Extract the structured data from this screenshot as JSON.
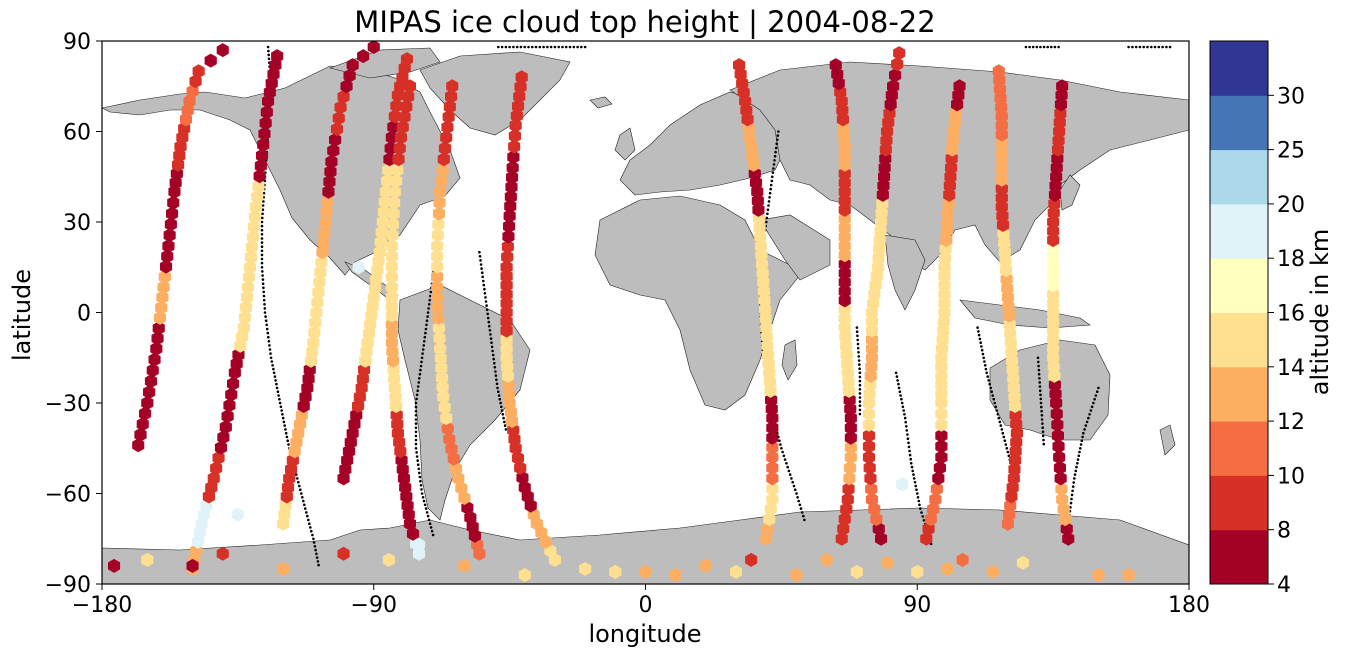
{
  "chart_data": {
    "type": "scatter",
    "title": "MIPAS ice cloud top height | 2004-08-22",
    "xlabel": "longitude",
    "ylabel": "latitude",
    "xlim": [
      -180,
      180
    ],
    "ylim": [
      -90,
      90
    ],
    "x_ticks": [
      -180,
      -90,
      0,
      90,
      180
    ],
    "y_ticks": [
      90,
      60,
      30,
      0,
      -30,
      -60,
      -90
    ],
    "x_tick_labels": [
      "−180",
      "−90",
      "0",
      "90",
      "180"
    ],
    "y_tick_labels": [
      "90",
      "60",
      "30",
      "0",
      "−30",
      "−60",
      "−90"
    ],
    "grid": false,
    "basemap": "world coastlines, land shaded grey",
    "colorbar": {
      "label": "altitude in km",
      "boundaries": [
        4,
        8,
        10,
        12,
        14,
        16,
        18,
        20,
        25,
        30
      ],
      "tick_labels": [
        "4",
        "8",
        "10",
        "12",
        "14",
        "16",
        "18",
        "20",
        "25",
        "30"
      ],
      "colors": [
        "#a50026",
        "#d73027",
        "#f46d43",
        "#fdae61",
        "#fee090",
        "#ffffbf",
        "#e0f3f8",
        "#abd9e9",
        "#4575b4",
        "#313695"
      ]
    },
    "clear_sky_marker": "black dots",
    "orbits": [
      {
        "points": [
          [
            -168,
            -44,
            6
          ],
          [
            -165,
            -30,
            6
          ],
          [
            -162,
            -12,
            7
          ],
          [
            -160,
            5,
            12
          ],
          [
            -158,
            22,
            7
          ],
          [
            -156,
            40,
            6
          ],
          [
            -154,
            55,
            9
          ],
          [
            -151,
            70,
            11
          ],
          [
            -148,
            80,
            9
          ],
          [
            -140,
            87,
            6
          ]
        ]
      },
      {
        "points": [
          [
            -150,
            -85,
            13
          ],
          [
            -147,
            -70,
            19
          ],
          [
            -143,
            -55,
            9
          ],
          [
            -139,
            -38,
            6
          ],
          [
            -136,
            -20,
            6
          ],
          [
            -133,
            -5,
            15
          ],
          [
            -131,
            15,
            15
          ],
          [
            -129,
            35,
            14
          ],
          [
            -127,
            52,
            7
          ],
          [
            -125,
            70,
            6
          ],
          [
            -122,
            85,
            7
          ]
        ]
      },
      {
        "points": [
          [
            -120,
            -70,
            15
          ],
          [
            -118,
            -55,
            9
          ],
          [
            -115,
            -40,
            13
          ],
          [
            -112,
            -25,
            7
          ],
          [
            -110,
            -10,
            15
          ],
          [
            -108,
            10,
            15
          ],
          [
            -106,
            30,
            13
          ],
          [
            -104,
            50,
            7
          ],
          [
            -101,
            68,
            8
          ],
          [
            -97,
            82,
            6
          ],
          [
            -90,
            88,
            7
          ]
        ]
      },
      {
        "points": [
          [
            -100,
            -55,
            6
          ],
          [
            -97,
            -40,
            7
          ],
          [
            -94,
            -25,
            9
          ],
          [
            -92,
            -10,
            15
          ],
          [
            -90,
            5,
            15
          ],
          [
            -88,
            20,
            15
          ],
          [
            -86,
            40,
            14
          ],
          [
            -84,
            58,
            7
          ],
          [
            -82,
            72,
            8
          ],
          [
            -79,
            84,
            9
          ]
        ]
      },
      {
        "points": [
          [
            -75,
            -80,
            19
          ],
          [
            -78,
            -70,
            6
          ],
          [
            -80,
            -55,
            6
          ],
          [
            -82,
            -40,
            8
          ],
          [
            -83,
            -25,
            14
          ],
          [
            -84,
            -10,
            13
          ],
          [
            -84,
            5,
            15
          ],
          [
            -84,
            22,
            14
          ],
          [
            -83,
            40,
            15
          ],
          [
            -81,
            58,
            8
          ],
          [
            -78,
            75,
            8
          ]
        ]
      },
      {
        "points": [
          [
            -55,
            -80,
            11
          ],
          [
            -58,
            -68,
            7
          ],
          [
            -62,
            -55,
            13
          ],
          [
            -65,
            -42,
            10
          ],
          [
            -67,
            -28,
            15
          ],
          [
            -68,
            -12,
            14
          ],
          [
            -69,
            5,
            13
          ],
          [
            -69,
            22,
            15
          ],
          [
            -68,
            40,
            13
          ],
          [
            -66,
            58,
            8
          ],
          [
            -64,
            75,
            9
          ]
        ]
      },
      {
        "points": [
          [
            -30,
            -82,
            15
          ],
          [
            -36,
            -70,
            13
          ],
          [
            -40,
            -58,
            7
          ],
          [
            -43,
            -45,
            9
          ],
          [
            -45,
            -30,
            13
          ],
          [
            -46,
            -15,
            15
          ],
          [
            -46,
            0,
            9
          ],
          [
            -46,
            15,
            8
          ],
          [
            -45,
            32,
            7
          ],
          [
            -44,
            48,
            6
          ],
          [
            -43,
            62,
            9
          ],
          [
            -41,
            78,
            8
          ]
        ]
      },
      {
        "points": [
          [
            40,
            -75,
            13
          ],
          [
            42,
            -62,
            15
          ],
          [
            42,
            -48,
            11
          ],
          [
            42,
            -35,
            7
          ],
          [
            41,
            -20,
            15
          ],
          [
            40,
            -5,
            15
          ],
          [
            39,
            10,
            14
          ],
          [
            38,
            25,
            15
          ],
          [
            37,
            40,
            7
          ],
          [
            35,
            55,
            13
          ],
          [
            33,
            70,
            9
          ],
          [
            31,
            82,
            8
          ]
        ]
      },
      {
        "points": [
          [
            65,
            -75,
            8
          ],
          [
            67,
            -62,
            9
          ],
          [
            68,
            -48,
            13
          ],
          [
            68,
            -35,
            7
          ],
          [
            67,
            -20,
            15
          ],
          [
            66,
            -5,
            15
          ],
          [
            66,
            10,
            7
          ],
          [
            66,
            25,
            13
          ],
          [
            66,
            40,
            8
          ],
          [
            66,
            55,
            12
          ],
          [
            65,
            70,
            9
          ],
          [
            63,
            82,
            6
          ]
        ]
      },
      {
        "points": [
          [
            78,
            -75,
            6
          ],
          [
            75,
            -62,
            10
          ],
          [
            74,
            -48,
            8
          ],
          [
            74,
            -30,
            15
          ],
          [
            75,
            -15,
            13
          ],
          [
            75,
            0,
            15
          ],
          [
            77,
            15,
            14
          ],
          [
            78,
            30,
            15
          ],
          [
            79,
            45,
            7
          ],
          [
            80,
            60,
            9
          ],
          [
            82,
            75,
            7
          ],
          [
            84,
            86,
            9
          ]
        ]
      },
      {
        "points": [
          [
            120,
            -70,
            11
          ],
          [
            122,
            -55,
            8
          ],
          [
            123,
            -40,
            9
          ],
          [
            122,
            -25,
            15
          ],
          [
            121,
            -10,
            14
          ],
          [
            120,
            5,
            13
          ],
          [
            119,
            20,
            15
          ],
          [
            118,
            35,
            8
          ],
          [
            118,
            50,
            12
          ],
          [
            118,
            65,
            11
          ],
          [
            117,
            80,
            10
          ]
        ]
      },
      {
        "points": [
          [
            140,
            -75,
            7
          ],
          [
            138,
            -62,
            13
          ],
          [
            137,
            -48,
            7
          ],
          [
            136,
            -30,
            6
          ],
          [
            135,
            -15,
            15
          ],
          [
            135,
            0,
            15
          ],
          [
            135,
            15,
            16
          ],
          [
            135,
            30,
            9
          ],
          [
            136,
            45,
            7
          ],
          [
            137,
            60,
            8
          ],
          [
            138,
            75,
            6
          ]
        ]
      },
      {
        "points": [
          [
            93,
            -75,
            9
          ],
          [
            96,
            -62,
            11
          ],
          [
            98,
            -48,
            7
          ],
          [
            98,
            -30,
            14
          ],
          [
            98,
            -15,
            14
          ],
          [
            99,
            0,
            15
          ],
          [
            99,
            15,
            14
          ],
          [
            100,
            30,
            13
          ],
          [
            101,
            45,
            8
          ],
          [
            102,
            60,
            12
          ],
          [
            104,
            75,
            7
          ]
        ]
      }
    ],
    "scattered_points": [
      [
        -176,
        -84,
        7
      ],
      [
        -165,
        -82,
        15
      ],
      [
        -150,
        -84,
        6
      ],
      [
        -140,
        -80,
        8
      ],
      [
        -120,
        -85,
        13
      ],
      [
        -100,
        -80,
        9
      ],
      [
        -85,
        -82,
        15
      ],
      [
        -60,
        -84,
        13
      ],
      [
        -40,
        -87,
        15
      ],
      [
        -20,
        -85,
        15
      ],
      [
        -10,
        -86,
        15
      ],
      [
        0,
        -86,
        13
      ],
      [
        10,
        -87,
        13
      ],
      [
        20,
        -84,
        13
      ],
      [
        30,
        -86,
        15
      ],
      [
        35,
        -82,
        9
      ],
      [
        50,
        -87,
        13
      ],
      [
        60,
        -82,
        13
      ],
      [
        70,
        -86,
        15
      ],
      [
        80,
        -83,
        13
      ],
      [
        90,
        -86,
        15
      ],
      [
        100,
        -85,
        13
      ],
      [
        105,
        -82,
        11
      ],
      [
        115,
        -86,
        13
      ],
      [
        125,
        -83,
        15
      ],
      [
        150,
        -87,
        13
      ],
      [
        160,
        -87,
        13
      ],
      [
        85,
        -57,
        19
      ],
      [
        -135,
        -67,
        19
      ],
      [
        -75,
        -77,
        19
      ],
      [
        -95,
        15,
        18
      ]
    ],
    "clear_sky_tracks": [
      {
        "points": [
          [
            -125,
            88
          ],
          [
            -124,
            75
          ],
          [
            -125,
            60
          ],
          [
            -126,
            45
          ],
          [
            -127,
            30
          ],
          [
            -127,
            15
          ],
          [
            -126,
            0
          ],
          [
            -124,
            -15
          ],
          [
            -121,
            -30
          ],
          [
            -118,
            -45
          ],
          [
            -114,
            -60
          ],
          [
            -110,
            -75
          ],
          [
            -108,
            -85
          ]
        ]
      },
      {
        "points": [
          [
            -70,
            15
          ],
          [
            -72,
            0
          ],
          [
            -74,
            -15
          ],
          [
            -76,
            -30
          ],
          [
            -76,
            -45
          ],
          [
            -74,
            -60
          ],
          [
            -70,
            -75
          ]
        ]
      },
      {
        "points": [
          [
            -55,
            20
          ],
          [
            -53,
            5
          ],
          [
            -51,
            -10
          ],
          [
            -49,
            -25
          ],
          [
            -46,
            -40
          ]
        ]
      },
      {
        "points": [
          [
            -20,
            88
          ],
          [
            -30,
            88
          ],
          [
            -40,
            88
          ],
          [
            -50,
            88
          ]
        ]
      },
      {
        "points": [
          [
            44,
            60
          ],
          [
            42,
            45
          ],
          [
            40,
            30
          ],
          [
            38,
            15
          ],
          [
            38,
            0
          ],
          [
            39,
            -15
          ],
          [
            41,
            -30
          ],
          [
            45,
            -45
          ],
          [
            50,
            -60
          ],
          [
            53,
            -70
          ]
        ]
      },
      {
        "points": [
          [
            70,
            -5
          ],
          [
            71,
            -20
          ],
          [
            71,
            -35
          ]
        ]
      },
      {
        "points": [
          [
            83,
            -20
          ],
          [
            86,
            -35
          ],
          [
            88,
            -50
          ],
          [
            91,
            -65
          ],
          [
            95,
            -78
          ]
        ]
      },
      {
        "points": [
          [
            110,
            -5
          ],
          [
            113,
            -20
          ],
          [
            117,
            -35
          ],
          [
            121,
            -50
          ]
        ]
      },
      {
        "points": [
          [
            130,
            -15
          ],
          [
            131,
            -30
          ],
          [
            132,
            -45
          ]
        ]
      },
      {
        "points": [
          [
            150,
            -25
          ],
          [
            145,
            -40
          ],
          [
            142,
            -55
          ],
          [
            140,
            -70
          ]
        ]
      },
      {
        "points": [
          [
            160,
            88
          ],
          [
            165,
            88
          ],
          [
            170,
            88
          ],
          [
            175,
            88
          ]
        ]
      },
      {
        "points": [
          [
            126,
            88
          ],
          [
            132,
            88
          ],
          [
            138,
            88
          ]
        ]
      }
    ]
  }
}
